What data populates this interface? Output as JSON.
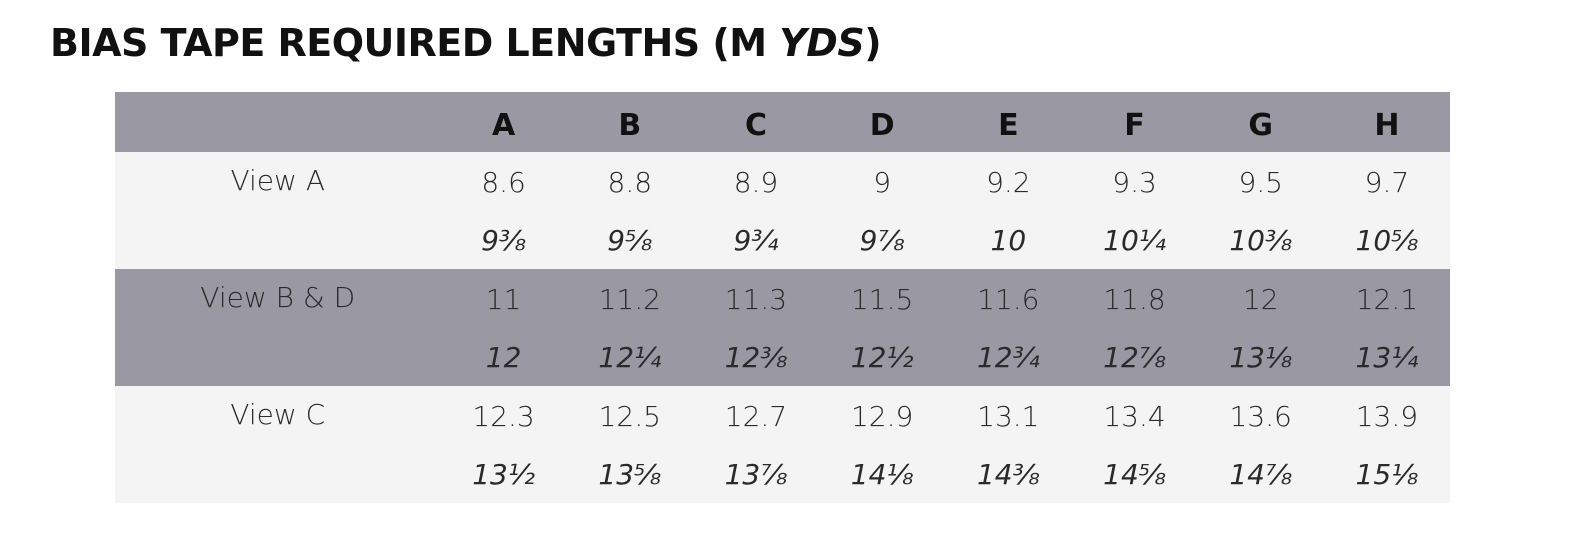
{
  "title": {
    "main": "BIAS TAPE REQUIRED LENGTHS (M",
    "alt_unit": "YDS",
    "close": ")"
  },
  "table": {
    "header": [
      "",
      "A",
      "B",
      "C",
      "D",
      "E",
      "F",
      "G",
      "H"
    ],
    "rows": [
      {
        "label": "View A",
        "metric": [
          "8.6",
          "8.8",
          "8.9",
          "9",
          "9.2",
          "9.3",
          "9.5",
          "9.7"
        ],
        "imperial": [
          "9⅜",
          "9⅝",
          "9¾",
          "9⅞",
          "10",
          "10¼",
          "10⅜",
          "10⅝"
        ]
      },
      {
        "label": "View B & D",
        "metric": [
          "11",
          "11.2",
          "11.3",
          "11.5",
          "11.6",
          "11.8",
          "12",
          "12.1"
        ],
        "imperial": [
          "12",
          "12¼",
          "12⅜",
          "12½",
          "12¾",
          "12⅞",
          "13⅛",
          "13¼"
        ]
      },
      {
        "label": "View C",
        "metric": [
          "12.3",
          "12.5",
          "12.7",
          "12.9",
          "13.1",
          "13.4",
          "13.6",
          "13.9"
        ],
        "imperial": [
          "13½",
          "13⅝",
          "13⅞",
          "14⅛",
          "14⅜",
          "14⅝",
          "14⅞",
          "15⅛"
        ]
      }
    ]
  },
  "colors": {
    "band": "#9a98a3",
    "light_row": "#f4f4f4",
    "text": "#1c1c1c"
  }
}
